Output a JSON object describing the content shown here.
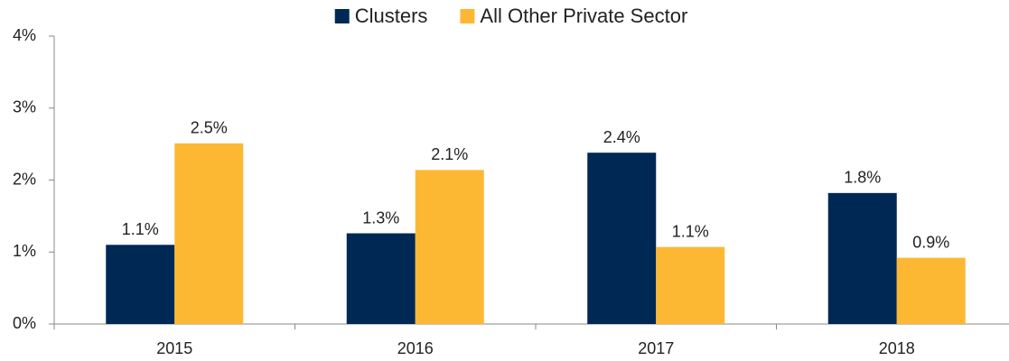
{
  "chart_data": {
    "type": "bar",
    "categories": [
      "2015",
      "2016",
      "2017",
      "2018"
    ],
    "series": [
      {
        "name": "Clusters",
        "color": "#002855",
        "values": [
          1.1,
          1.26,
          2.38,
          1.82
        ],
        "value_labels": [
          "1.1%",
          "1.3%",
          "2.4%",
          "1.8%"
        ]
      },
      {
        "name": "All Other Private Sector",
        "color": "#fdb833",
        "values": [
          2.51,
          2.14,
          1.07,
          0.92
        ],
        "value_labels": [
          "2.5%",
          "2.1%",
          "1.1%",
          "0.9%"
        ]
      }
    ],
    "ylim": [
      0,
      4
    ],
    "yticks": [
      {
        "value": 0,
        "label": "0%"
      },
      {
        "value": 1,
        "label": "1%"
      },
      {
        "value": 2,
        "label": "2%"
      },
      {
        "value": 3,
        "label": "3%"
      },
      {
        "value": 4,
        "label": "4%"
      }
    ],
    "grid": false,
    "legend": "top"
  }
}
